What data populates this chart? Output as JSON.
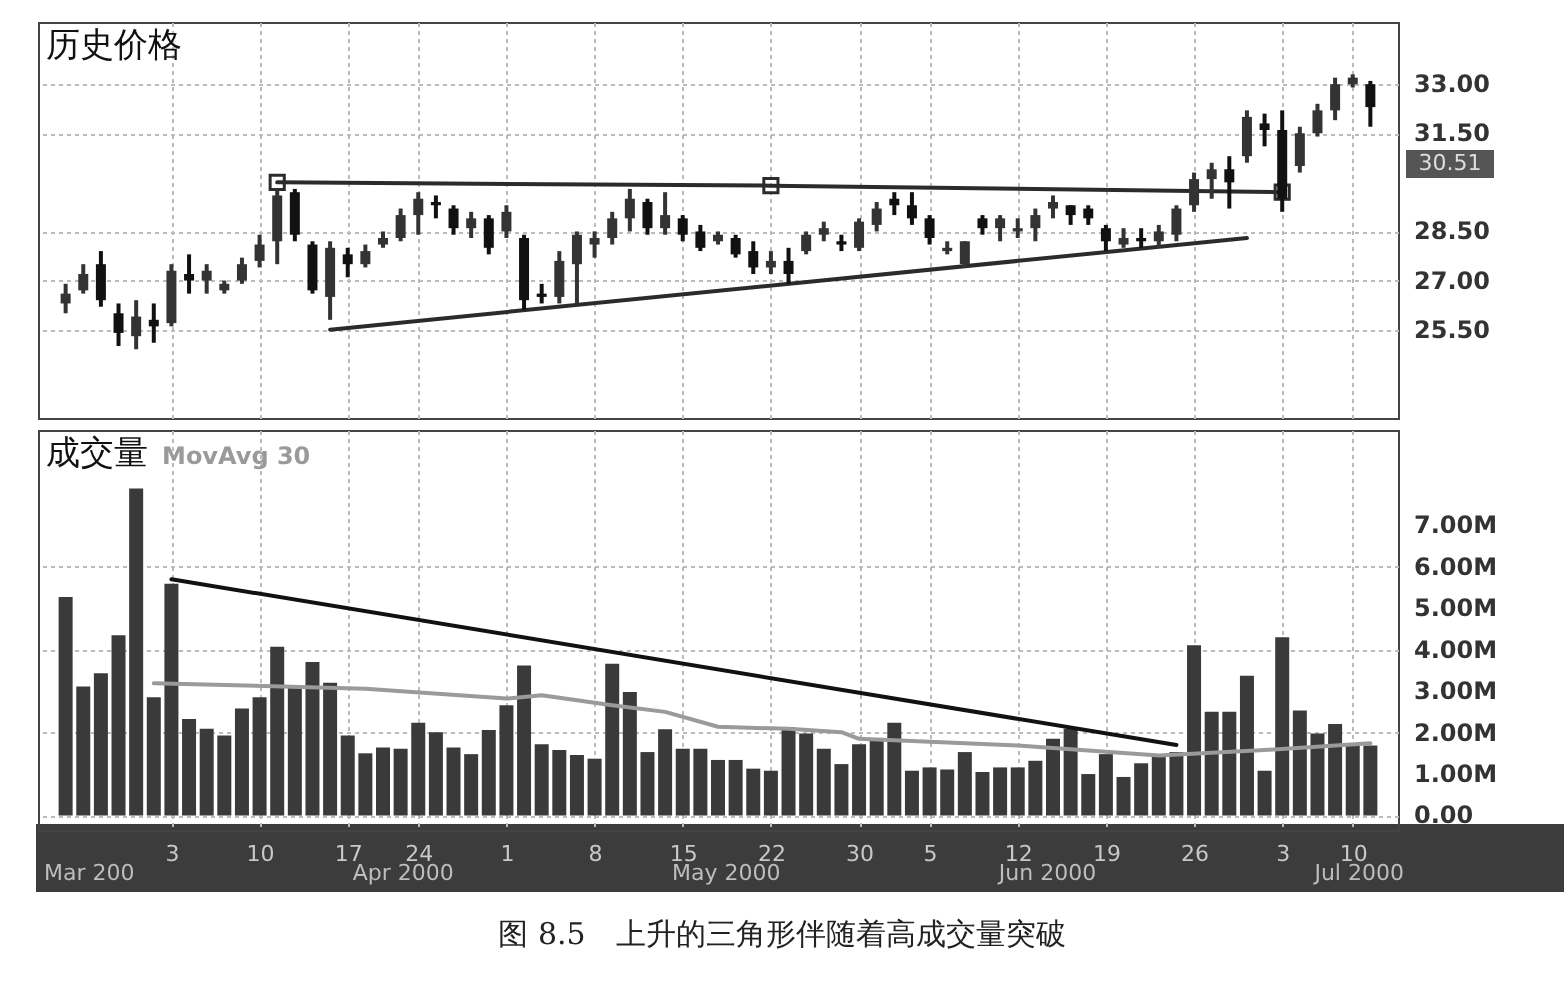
{
  "chart_data": [
    {
      "type": "candlestick",
      "title": "历史价格",
      "categories": [
        null,
        null,
        null,
        null,
        null,
        null,
        "3",
        null,
        null,
        null,
        null,
        "10",
        null,
        null,
        null,
        null,
        "17",
        null,
        null,
        null,
        "24",
        null,
        null,
        null,
        null,
        "1",
        null,
        null,
        null,
        null,
        "8",
        null,
        null,
        null,
        null,
        "15",
        null,
        null,
        null,
        null,
        "22",
        null,
        null,
        null,
        null,
        "30",
        null,
        null,
        null,
        "5",
        null,
        null,
        null,
        null,
        "12",
        null,
        null,
        null,
        null,
        "19",
        null,
        null,
        null,
        null,
        "26",
        null,
        null,
        null,
        null,
        "3",
        null,
        null,
        null,
        "10",
        null
      ],
      "ohlc": [
        [
          26.3,
          26.9,
          26.0,
          26.6
        ],
        [
          26.7,
          27.5,
          26.6,
          27.2
        ],
        [
          27.5,
          27.9,
          26.2,
          26.4
        ],
        [
          26.0,
          26.3,
          25.0,
          25.4
        ],
        [
          25.3,
          26.4,
          24.9,
          25.9
        ],
        [
          25.8,
          26.3,
          25.1,
          25.6
        ],
        [
          25.7,
          27.5,
          25.6,
          27.3
        ],
        [
          27.2,
          27.8,
          26.6,
          27.0
        ],
        [
          27.0,
          27.5,
          26.6,
          27.3
        ],
        [
          26.7,
          27.0,
          26.6,
          26.9
        ],
        [
          27.0,
          27.7,
          26.9,
          27.5
        ],
        [
          27.6,
          28.4,
          27.4,
          28.1
        ],
        [
          28.2,
          29.8,
          27.5,
          29.6
        ],
        [
          29.7,
          29.8,
          28.2,
          28.4
        ],
        [
          28.1,
          28.2,
          26.6,
          26.7
        ],
        [
          26.5,
          28.2,
          25.8,
          28.0
        ],
        [
          27.8,
          28.0,
          27.1,
          27.5
        ],
        [
          27.5,
          28.1,
          27.4,
          27.9
        ],
        [
          28.1,
          28.5,
          28.0,
          28.3
        ],
        [
          28.3,
          29.2,
          28.2,
          29.0
        ],
        [
          29.0,
          29.7,
          28.4,
          29.5
        ],
        [
          29.4,
          29.6,
          28.9,
          29.3
        ],
        [
          29.2,
          29.3,
          28.4,
          28.6
        ],
        [
          28.6,
          29.1,
          28.3,
          28.9
        ],
        [
          28.9,
          29.0,
          27.8,
          28.0
        ],
        [
          28.5,
          29.3,
          28.3,
          29.1
        ],
        [
          28.3,
          28.4,
          26.1,
          26.4
        ],
        [
          26.6,
          26.9,
          26.3,
          26.5
        ],
        [
          26.5,
          27.9,
          26.3,
          27.6
        ],
        [
          27.5,
          28.5,
          26.3,
          28.4
        ],
        [
          28.1,
          28.5,
          27.7,
          28.3
        ],
        [
          28.3,
          29.1,
          28.1,
          28.9
        ],
        [
          28.9,
          29.8,
          28.5,
          29.5
        ],
        [
          29.4,
          29.5,
          28.4,
          28.6
        ],
        [
          28.6,
          29.7,
          28.4,
          29.0
        ],
        [
          28.9,
          29.0,
          28.2,
          28.4
        ],
        [
          28.5,
          28.7,
          27.9,
          28.0
        ],
        [
          28.2,
          28.5,
          28.1,
          28.4
        ],
        [
          28.3,
          28.4,
          27.7,
          27.8
        ],
        [
          27.9,
          28.2,
          27.2,
          27.4
        ],
        [
          27.4,
          27.9,
          27.2,
          27.6
        ],
        [
          27.6,
          28.0,
          26.9,
          27.2
        ],
        [
          27.9,
          28.5,
          27.8,
          28.4
        ],
        [
          28.4,
          28.8,
          28.2,
          28.6
        ],
        [
          28.2,
          28.4,
          27.9,
          28.1
        ],
        [
          28.0,
          28.9,
          27.9,
          28.8
        ],
        [
          28.7,
          29.4,
          28.5,
          29.2
        ],
        [
          29.5,
          29.7,
          29.0,
          29.3
        ],
        [
          29.3,
          29.7,
          28.7,
          28.9
        ],
        [
          28.9,
          29.0,
          28.1,
          28.3
        ],
        [
          27.9,
          28.2,
          27.8,
          28.0
        ],
        [
          27.5,
          28.2,
          27.4,
          28.2
        ],
        [
          28.9,
          29.0,
          28.4,
          28.6
        ],
        [
          28.6,
          29.0,
          28.2,
          28.9
        ],
        [
          28.5,
          28.9,
          28.3,
          28.6
        ],
        [
          28.6,
          29.2,
          28.2,
          29.0
        ],
        [
          29.2,
          29.6,
          28.9,
          29.4
        ],
        [
          29.3,
          29.3,
          28.7,
          29.0
        ],
        [
          29.2,
          29.3,
          28.7,
          28.9
        ],
        [
          28.6,
          28.7,
          27.9,
          28.2
        ],
        [
          28.1,
          28.6,
          28.0,
          28.3
        ],
        [
          28.3,
          28.6,
          28.0,
          28.2
        ],
        [
          28.2,
          28.7,
          28.0,
          28.5
        ],
        [
          28.4,
          29.3,
          28.2,
          29.2
        ],
        [
          29.3,
          30.3,
          29.1,
          30.1
        ],
        [
          30.1,
          30.6,
          29.5,
          30.4
        ],
        [
          30.4,
          30.8,
          29.2,
          30.0
        ],
        [
          30.8,
          32.2,
          30.6,
          32.0
        ],
        [
          31.8,
          32.1,
          31.1,
          31.6
        ],
        [
          31.6,
          32.2,
          29.1,
          29.5
        ],
        [
          30.5,
          31.7,
          30.3,
          31.5
        ],
        [
          31.5,
          32.4,
          31.4,
          32.2
        ],
        [
          32.2,
          33.2,
          31.9,
          33.0
        ],
        [
          33.0,
          33.3,
          32.9,
          33.2
        ],
        [
          33.0,
          33.1,
          31.7,
          32.3
        ]
      ],
      "series": [
        {
          "type": "line",
          "color": "#2b2b2b",
          "marker": "square",
          "values": [
            null,
            null,
            null,
            null,
            null,
            null,
            null,
            null,
            null,
            null,
            null,
            null,
            30.0,
            null,
            null,
            null,
            null,
            null,
            null,
            null,
            null,
            null,
            null,
            null,
            null,
            null,
            null,
            null,
            null,
            null,
            null,
            null,
            null,
            null,
            null,
            null,
            null,
            null,
            null,
            null,
            29.9,
            null,
            null,
            null,
            null,
            null,
            null,
            null,
            null,
            null,
            null,
            null,
            null,
            null,
            null,
            null,
            null,
            null,
            null,
            null,
            null,
            null,
            null,
            null,
            null,
            null,
            null,
            null,
            null,
            29.7,
            null,
            null,
            null,
            null,
            null
          ]
        },
        {
          "type": "line",
          "color": "#2b2b2b",
          "values": [
            null,
            null,
            null,
            null,
            null,
            null,
            null,
            null,
            null,
            null,
            null,
            null,
            null,
            null,
            null,
            25.5,
            null,
            null,
            null,
            null,
            null,
            null,
            null,
            null,
            null,
            null,
            null,
            null,
            null,
            null,
            null,
            null,
            null,
            null,
            null,
            null,
            null,
            null,
            null,
            null,
            null,
            null,
            null,
            null,
            null,
            null,
            null,
            null,
            null,
            null,
            null,
            null,
            null,
            null,
            null,
            null,
            null,
            null,
            null,
            null,
            null,
            null,
            null,
            null,
            null,
            null,
            null,
            28.3,
            null,
            null,
            null,
            null,
            null,
            null,
            null
          ]
        }
      ],
      "ylim": [
        22.8,
        34.9
      ],
      "yticks": [
        {
          "value": 25.5,
          "label": "25.50"
        },
        {
          "value": 27,
          "label": "27.00"
        },
        {
          "value": 28.5,
          "label": "28.50"
        },
        {
          "value": 31.5,
          "label": "31.50"
        },
        {
          "value": 33,
          "label": "33.00"
        }
      ],
      "annotations": [
        "30.51"
      ],
      "grid": true,
      "tick_labels": "y"
    },
    {
      "type": "bar",
      "title": "成交量",
      "categories": [
        null,
        null,
        null,
        null,
        null,
        null,
        "3",
        null,
        null,
        null,
        null,
        "10",
        null,
        null,
        null,
        null,
        "17",
        null,
        null,
        null,
        "24",
        null,
        null,
        null,
        null,
        "1",
        null,
        null,
        null,
        null,
        "8",
        null,
        null,
        null,
        null,
        "15",
        null,
        null,
        null,
        null,
        "22",
        null,
        null,
        null,
        null,
        "30",
        null,
        null,
        null,
        "5",
        null,
        null,
        null,
        null,
        "12",
        null,
        null,
        null,
        null,
        "19",
        null,
        null,
        null,
        null,
        "26",
        null,
        null,
        null,
        null,
        "3",
        null,
        null,
        null,
        "10",
        null
      ],
      "series": [
        {
          "color": "#3a3a3a",
          "values": [
            5.27,
            3.11,
            3.43,
            4.35,
            7.89,
            2.85,
            5.59,
            2.33,
            2.09,
            1.93,
            2.58,
            2.85,
            4.07,
            3.11,
            3.7,
            3.2,
            1.93,
            1.5,
            1.64,
            1.61,
            2.24,
            2.01,
            1.64,
            1.48,
            2.06,
            2.66,
            3.62,
            1.72,
            1.58,
            1.46,
            1.37,
            3.66,
            2.98,
            1.53,
            2.08,
            1.61,
            1.61,
            1.34,
            1.34,
            1.13,
            1.08,
            2.13,
            1.98,
            1.61,
            1.24,
            1.72,
            1.85,
            2.24,
            1.08,
            1.16,
            1.11,
            1.53,
            1.05,
            1.16,
            1.16,
            1.32,
            1.85,
            2.09,
            1.0,
            1.48,
            0.93,
            1.26,
            1.46,
            1.53,
            4.11,
            2.5,
            2.5,
            3.37,
            1.08,
            4.3,
            2.53,
            1.98,
            2.21,
            1.74,
            1.69
          ]
        },
        {
          "name": "MovAvg 30",
          "type": "line",
          "color": "#9a9a9a",
          "values": [
            null,
            null,
            null,
            null,
            null,
            3.19,
            null,
            null,
            null,
            null,
            null,
            null,
            null,
            null,
            null,
            null,
            null,
            3.06,
            null,
            null,
            null,
            null,
            null,
            null,
            null,
            2.82,
            null,
            2.9,
            null,
            null,
            null,
            2.66,
            null,
            null,
            2.5,
            null,
            null,
            2.14,
            null,
            null,
            null,
            2.09,
            null,
            null,
            2.01,
            1.85,
            null,
            null,
            null,
            null,
            null,
            null,
            null,
            null,
            1.69,
            null,
            null,
            null,
            null,
            null,
            null,
            null,
            1.45,
            null,
            null,
            null,
            null,
            null,
            1.58,
            null,
            null,
            null,
            null,
            null,
            1.74
          ]
        },
        {
          "type": "line",
          "color": "#111111",
          "values": [
            null,
            null,
            null,
            null,
            null,
            null,
            5.7,
            null,
            null,
            null,
            null,
            null,
            null,
            null,
            null,
            null,
            null,
            null,
            null,
            null,
            null,
            null,
            null,
            null,
            null,
            null,
            null,
            null,
            null,
            null,
            null,
            null,
            null,
            null,
            null,
            null,
            null,
            null,
            null,
            null,
            null,
            null,
            null,
            null,
            null,
            null,
            null,
            null,
            null,
            null,
            null,
            null,
            null,
            null,
            null,
            null,
            null,
            null,
            null,
            null,
            null,
            null,
            null,
            1.7,
            null,
            null,
            null,
            null,
            null,
            null,
            null,
            null,
            null,
            null,
            null
          ]
        }
      ],
      "ylim": [
        -0.35,
        9.3
      ],
      "yticks": [
        {
          "value": 0,
          "label": "0.00"
        },
        {
          "value": 1,
          "label": "1.00M"
        },
        {
          "value": 2,
          "label": "2.00M"
        },
        {
          "value": 3,
          "label": "3.00M"
        },
        {
          "value": 4,
          "label": "4.00M"
        },
        {
          "value": 5,
          "label": "5.00M"
        },
        {
          "value": 6,
          "label": "6.00M"
        },
        {
          "value": 7,
          "label": "7.00M"
        }
      ],
      "annotations": [
        "Mar 200",
        "Apr 2000",
        "May 2000",
        "Jun 2000",
        "Jul 2000",
        "图 8.5　上升的三角形伴随着高成交量突破"
      ],
      "legend": "top left",
      "grid": true
    }
  ]
}
